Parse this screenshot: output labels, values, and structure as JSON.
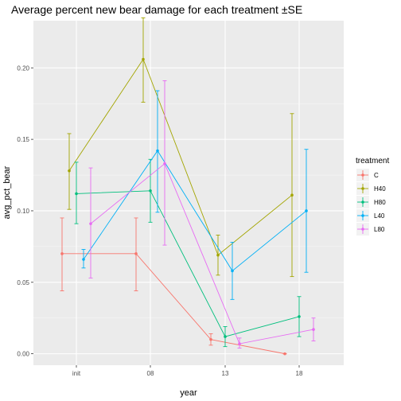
{
  "chart_data": {
    "type": "line",
    "title": "Average percent new bear damage for each treatment ±SE",
    "xlabel": "year",
    "ylabel": "avg_pct_bear",
    "categories": [
      "init",
      "08",
      "13",
      "18"
    ],
    "ylim": [
      -0.008,
      0.233
    ],
    "yticks": [
      0.0,
      0.05,
      0.1,
      0.15,
      0.2
    ],
    "ytick_labels": [
      "0.00",
      "0.05",
      "0.10",
      "0.15",
      "0.20"
    ],
    "grid": true,
    "legend_title": "treatment",
    "legend_position": "right",
    "series": [
      {
        "name": "C",
        "color": "#F8766D",
        "points": [
          {
            "category": "init",
            "y": 0.07,
            "lo": 0.044,
            "hi": 0.095
          },
          {
            "category": "08",
            "y": 0.07,
            "lo": 0.044,
            "hi": 0.095
          },
          {
            "category": "13",
            "y": 0.01,
            "lo": 0.006,
            "hi": 0.014
          },
          {
            "category": "18",
            "y": 0.0,
            "lo": 0.0,
            "hi": 0.0
          }
        ]
      },
      {
        "name": "H40",
        "color": "#A3A500",
        "points": [
          {
            "category": "init",
            "y": 0.128,
            "lo": 0.101,
            "hi": 0.154
          },
          {
            "category": "08",
            "y": 0.206,
            "lo": 0.176,
            "hi": 0.235
          },
          {
            "category": "13",
            "y": 0.069,
            "lo": 0.055,
            "hi": 0.083
          },
          {
            "category": "18",
            "y": 0.111,
            "lo": 0.054,
            "hi": 0.168
          }
        ]
      },
      {
        "name": "H80",
        "color": "#00BF7D",
        "points": [
          {
            "category": "init",
            "y": 0.112,
            "lo": 0.091,
            "hi": 0.134
          },
          {
            "category": "08",
            "y": 0.114,
            "lo": 0.092,
            "hi": 0.136
          },
          {
            "category": "13",
            "y": 0.012,
            "lo": 0.005,
            "hi": 0.019
          },
          {
            "category": "18",
            "y": 0.026,
            "lo": 0.012,
            "hi": 0.04
          }
        ]
      },
      {
        "name": "L40",
        "color": "#00B0F6",
        "points": [
          {
            "category": "init",
            "y": 0.066,
            "lo": 0.06,
            "hi": 0.073
          },
          {
            "category": "08",
            "y": 0.142,
            "lo": 0.099,
            "hi": 0.184
          },
          {
            "category": "13",
            "y": 0.058,
            "lo": 0.038,
            "hi": 0.078
          },
          {
            "category": "18",
            "y": 0.1,
            "lo": 0.057,
            "hi": 0.143
          }
        ]
      },
      {
        "name": "L80",
        "color": "#E76BF3",
        "points": [
          {
            "category": "init",
            "y": 0.091,
            "lo": 0.053,
            "hi": 0.13
          },
          {
            "category": "08",
            "y": 0.133,
            "lo": 0.076,
            "hi": 0.191
          },
          {
            "category": "13",
            "y": 0.007,
            "lo": 0.004,
            "hi": 0.011
          },
          {
            "category": "18",
            "y": 0.017,
            "lo": 0.009,
            "hi": 0.025
          }
        ]
      }
    ]
  }
}
